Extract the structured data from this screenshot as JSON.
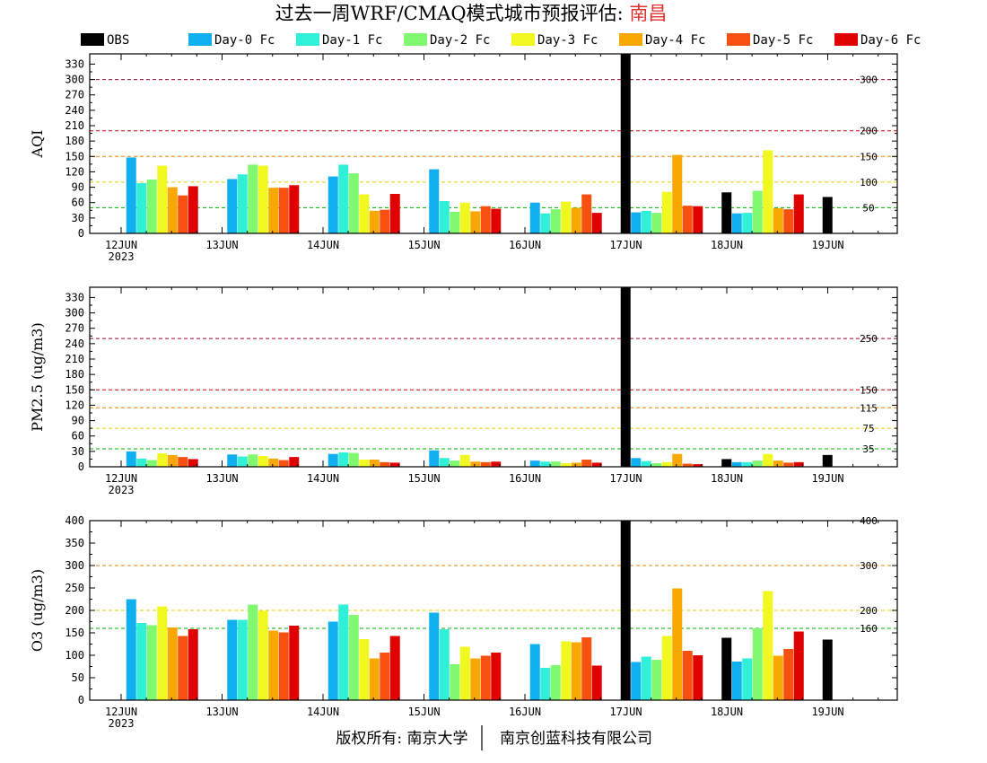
{
  "page": {
    "title_main": "过去一周WRF/CMAQ模式城市预报评估:",
    "title_city": "南昌",
    "footer_left": "版权所有: 南京大学",
    "footer_right": "南京创蓝科技有限公司",
    "colors": {
      "city": "#e03030",
      "frame": "#000000"
    }
  },
  "legend": [
    {
      "name": "OBS",
      "color": "#000000"
    },
    {
      "name": "Day-0 Fc",
      "color": "#10b0f0"
    },
    {
      "name": "Day-1 Fc",
      "color": "#30f0d8"
    },
    {
      "name": "Day-2 Fc",
      "color": "#80f870"
    },
    {
      "name": "Day-3 Fc",
      "color": "#f0f820"
    },
    {
      "name": "Day-4 Fc",
      "color": "#f8a800"
    },
    {
      "name": "Day-5 Fc",
      "color": "#f85010"
    },
    {
      "name": "Day-6 Fc",
      "color": "#e00000"
    }
  ],
  "x_dates": [
    "12JUN",
    "13JUN",
    "14JUN",
    "15JUN",
    "16JUN",
    "17JUN",
    "18JUN",
    "19JUN"
  ],
  "x_year": "2023",
  "chart_data": [
    {
      "type": "bar",
      "ylabel": "AQI",
      "ylim": [
        0,
        350
      ],
      "yticks": [
        0,
        30,
        60,
        90,
        120,
        150,
        180,
        210,
        240,
        270,
        300,
        330
      ],
      "ref_lines": [
        {
          "value": 50,
          "label": "50",
          "color": "#00b000"
        },
        {
          "value": 100,
          "label": "100",
          "color": "#e0d000"
        },
        {
          "value": 150,
          "label": "150",
          "color": "#f08000"
        },
        {
          "value": 200,
          "label": "200",
          "color": "#d00000"
        },
        {
          "value": 300,
          "label": "300",
          "color": "#a00040"
        }
      ],
      "categories": [
        "12JUN",
        "13JUN",
        "14JUN",
        "15JUN",
        "16JUN",
        "17JUN",
        "18JUN",
        "19JUN"
      ],
      "series": [
        {
          "name": "OBS",
          "values": [
            null,
            null,
            null,
            null,
            null,
            350,
            80,
            71
          ]
        },
        {
          "name": "Day-0 Fc",
          "values": [
            148,
            106,
            111,
            125,
            60,
            41,
            39,
            null
          ]
        },
        {
          "name": "Day-1 Fc",
          "values": [
            98,
            115,
            134,
            63,
            39,
            44,
            40,
            null
          ]
        },
        {
          "name": "Day-2 Fc",
          "values": [
            105,
            134,
            117,
            42,
            47,
            40,
            83,
            null
          ]
        },
        {
          "name": "Day-3 Fc",
          "values": [
            132,
            132,
            76,
            60,
            62,
            81,
            162,
            null
          ]
        },
        {
          "name": "Day-4 Fc",
          "values": [
            90,
            89,
            44,
            43,
            50,
            153,
            49,
            null
          ]
        },
        {
          "name": "Day-5 Fc",
          "values": [
            74,
            89,
            46,
            53,
            76,
            54,
            47,
            null
          ]
        },
        {
          "name": "Day-6 Fc",
          "values": [
            92,
            94,
            77,
            48,
            40,
            53,
            76,
            null
          ]
        }
      ]
    },
    {
      "type": "bar",
      "ylabel": "PM2.5 (ug/m3)",
      "ylim": [
        0,
        350
      ],
      "yticks": [
        0,
        30,
        60,
        90,
        120,
        150,
        180,
        210,
        240,
        270,
        300,
        330
      ],
      "ref_lines": [
        {
          "value": 35,
          "label": "35",
          "color": "#00b000"
        },
        {
          "value": 75,
          "label": "75",
          "color": "#e0d000"
        },
        {
          "value": 115,
          "label": "115",
          "color": "#f08000"
        },
        {
          "value": 150,
          "label": "150",
          "color": "#d00000"
        },
        {
          "value": 250,
          "label": "250",
          "color": "#a00040"
        }
      ],
      "categories": [
        "12JUN",
        "13JUN",
        "14JUN",
        "15JUN",
        "16JUN",
        "17JUN",
        "18JUN",
        "19JUN"
      ],
      "series": [
        {
          "name": "OBS",
          "values": [
            null,
            null,
            null,
            null,
            null,
            350,
            15,
            23
          ]
        },
        {
          "name": "Day-0 Fc",
          "values": [
            30,
            24,
            25,
            32,
            12,
            17,
            9,
            null
          ]
        },
        {
          "name": "Day-1 Fc",
          "values": [
            16,
            20,
            28,
            17,
            10,
            11,
            9,
            null
          ]
        },
        {
          "name": "Day-2 Fc",
          "values": [
            13,
            24,
            27,
            12,
            10,
            7,
            12,
            null
          ]
        },
        {
          "name": "Day-3 Fc",
          "values": [
            26,
            21,
            14,
            23,
            7,
            9,
            25,
            null
          ]
        },
        {
          "name": "Day-4 Fc",
          "values": [
            23,
            16,
            14,
            10,
            8,
            25,
            12,
            null
          ]
        },
        {
          "name": "Day-5 Fc",
          "values": [
            19,
            13,
            9,
            9,
            14,
            6,
            8,
            null
          ]
        },
        {
          "name": "Day-6 Fc",
          "values": [
            15,
            19,
            8,
            10,
            8,
            5,
            9,
            null
          ]
        }
      ]
    },
    {
      "type": "bar",
      "ylabel": "O3 (ug/m3)",
      "ylim": [
        0,
        400
      ],
      "yticks": [
        0,
        50,
        100,
        150,
        200,
        250,
        300,
        350,
        400
      ],
      "ref_lines": [
        {
          "value": 160,
          "label": "160",
          "color": "#00b000"
        },
        {
          "value": 200,
          "label": "200",
          "color": "#e0d000"
        },
        {
          "value": 300,
          "label": "300",
          "color": "#f08000"
        },
        {
          "value": 400,
          "label": "400",
          "color": "#d00000"
        }
      ],
      "categories": [
        "12JUN",
        "13JUN",
        "14JUN",
        "15JUN",
        "16JUN",
        "17JUN",
        "18JUN",
        "19JUN"
      ],
      "series": [
        {
          "name": "OBS",
          "values": [
            null,
            null,
            null,
            null,
            null,
            400,
            139,
            135
          ]
        },
        {
          "name": "Day-0 Fc",
          "values": [
            225,
            179,
            175,
            195,
            125,
            85,
            86,
            null
          ]
        },
        {
          "name": "Day-1 Fc",
          "values": [
            172,
            179,
            213,
            158,
            72,
            97,
            93,
            null
          ]
        },
        {
          "name": "Day-2 Fc",
          "values": [
            167,
            213,
            190,
            80,
            78,
            90,
            160,
            null
          ]
        },
        {
          "name": "Day-3 Fc",
          "values": [
            209,
            199,
            136,
            119,
            131,
            143,
            243,
            null
          ]
        },
        {
          "name": "Day-4 Fc",
          "values": [
            162,
            155,
            93,
            93,
            129,
            249,
            99,
            null
          ]
        },
        {
          "name": "Day-5 Fc",
          "values": [
            143,
            151,
            106,
            99,
            140,
            110,
            114,
            null
          ]
        },
        {
          "name": "Day-6 Fc",
          "values": [
            158,
            166,
            143,
            106,
            77,
            100,
            153,
            null
          ]
        }
      ]
    }
  ]
}
